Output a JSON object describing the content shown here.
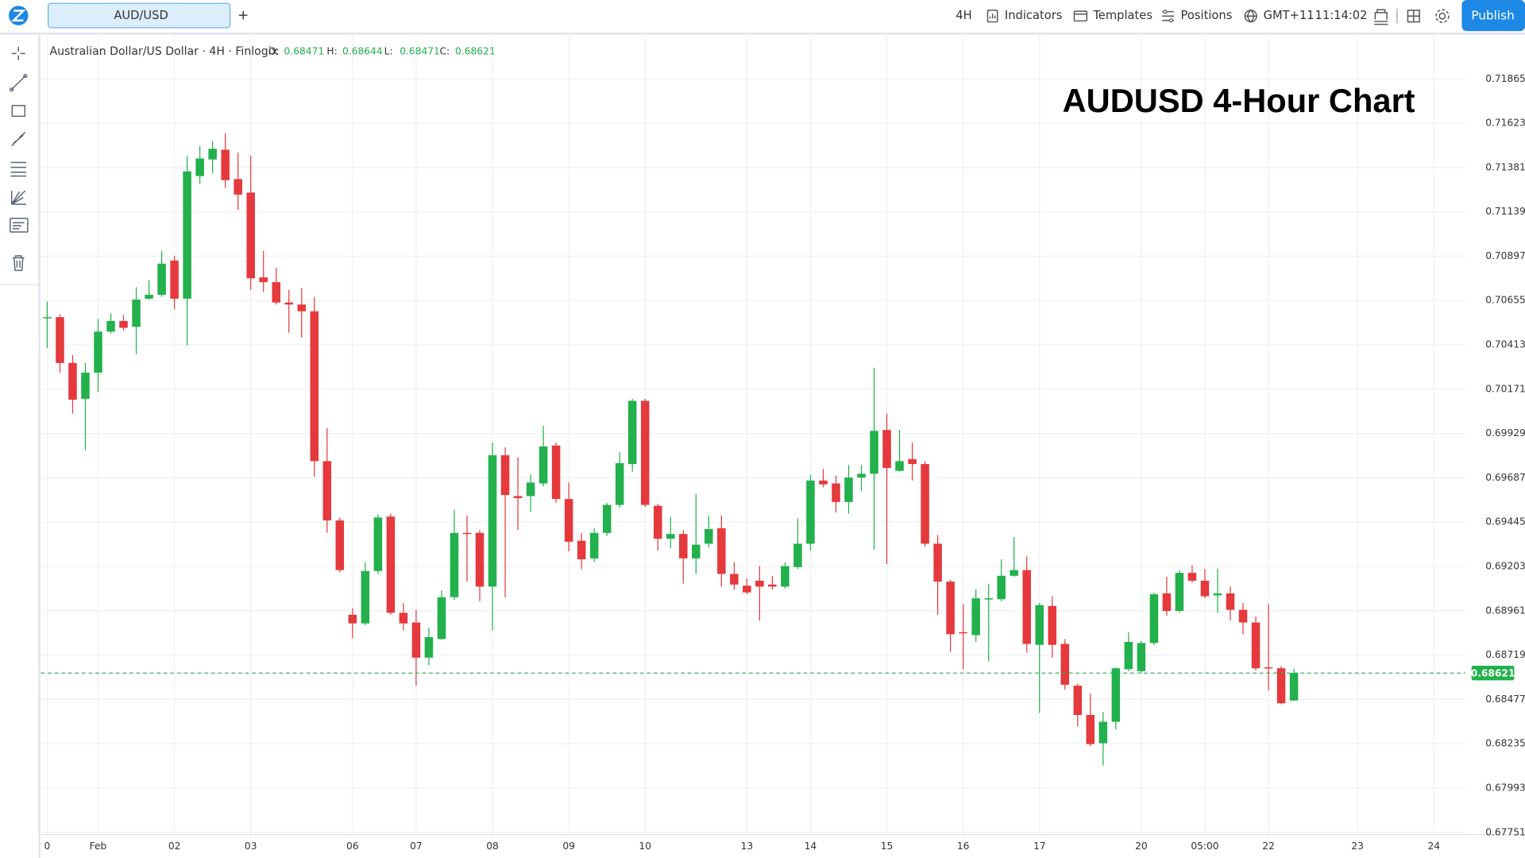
{
  "toolbar": {
    "symbol_tab": "AUD/USD",
    "add_tab": "+",
    "interval": "4H",
    "indicators": "Indicators",
    "templates": "Templates",
    "positions": "Positions",
    "timezone": "GMT+11",
    "clock": "11:14:02",
    "publish": "Publish"
  },
  "chart_data": {
    "type": "candlestick",
    "title": "AUDUSD 4-Hour Chart",
    "legend": {
      "symbol": "Australian Dollar/US Dollar · 4H · Finlogix",
      "labels": [
        "O:",
        "H:",
        "L:",
        "C:"
      ]
    },
    "categories": [
      "0",
      null,
      null,
      null,
      "Feb",
      null,
      null,
      null,
      null,
      null,
      "02",
      null,
      null,
      null,
      null,
      null,
      "03",
      null,
      null,
      null,
      null,
      null,
      null,
      null,
      "06",
      null,
      null,
      null,
      null,
      "07",
      null,
      null,
      null,
      null,
      null,
      "08",
      null,
      null,
      null,
      null,
      null,
      "09",
      null,
      null,
      null,
      null,
      null,
      "10",
      null,
      null,
      null,
      null,
      null,
      null,
      null,
      "13",
      null,
      null,
      null,
      null,
      "14",
      null,
      null,
      null,
      null,
      null,
      "15",
      null,
      null,
      null,
      null,
      null,
      "16",
      null,
      null,
      null,
      null,
      null,
      "17",
      null,
      null,
      null,
      null,
      null,
      null,
      null,
      "20",
      null,
      null,
      null,
      null,
      "05:00",
      null,
      null,
      null,
      null,
      "22",
      null,
      null,
      null,
      null,
      null,
      null,
      "23",
      null,
      null,
      null,
      null,
      null,
      "24",
      null,
      null
    ],
    "open": [
      0.70559,
      0.70564,
      0.70314,
      0.70118,
      0.70261,
      0.70485,
      0.70543,
      0.70511,
      0.70665,
      0.70686,
      0.70873,
      0.70665,
      0.71334,
      0.71425,
      0.71478,
      0.71318,
      0.71244,
      0.70781,
      0.70755,
      0.70644,
      0.70633,
      0.70596,
      0.69778,
      0.69454,
      0.68939,
      0.68892,
      0.69178,
      0.69475,
      0.6895,
      0.68897,
      0.68705,
      0.68807,
      0.69035,
      0.69386,
      0.69386,
      0.69093,
      0.6981,
      0.69587,
      0.69587,
      0.69656,
      0.69863,
      0.69571,
      0.69343,
      0.69247,
      0.69386,
      0.69539,
      0.69762,
      0.70107,
      0.69534,
      0.69354,
      0.6938,
      0.69247,
      0.69327,
      0.69412,
      0.69162,
      0.69098,
      0.69125,
      0.69104,
      0.69093,
      0.69199,
      0.69327,
      0.69672,
      0.69656,
      0.69555,
      0.69688,
      0.69709,
      0.69948,
      0.69725,
      0.69789,
      0.69762,
      0.69327,
      0.6912,
      0.68844,
      0.68828,
      0.69024,
      0.69024,
      0.69152,
      0.69183,
      0.68775,
      0.68987,
      0.6878,
      0.68552,
      0.68392,
      0.68238,
      0.68355,
      0.68642,
      0.68631,
      0.68785,
      0.69056,
      0.6896,
      0.69168,
      0.69125,
      0.69045,
      0.69056,
      0.68966,
      0.68897,
      0.68652,
      0.68647,
      0.68471,
      null,
      null,
      null,
      null,
      null,
      null,
      null,
      null,
      null,
      null,
      null,
      null,
      null
    ],
    "high": [
      0.70649,
      0.7058,
      0.70357,
      0.70314,
      0.70554,
      0.70585,
      0.70575,
      0.70728,
      0.70766,
      0.70926,
      0.70899,
      0.71446,
      0.71499,
      0.71525,
      0.71568,
      0.71462,
      0.71446,
      0.70926,
      0.70834,
      0.70713,
      0.70723,
      0.70675,
      0.69959,
      0.6947,
      0.68976,
      0.69226,
      0.69486,
      0.69491,
      0.69003,
      0.68966,
      0.6887,
      0.69072,
      0.69513,
      0.69481,
      0.69401,
      0.69879,
      0.69853,
      0.69799,
      0.69704,
      0.6997,
      0.69879,
      0.69661,
      0.69386,
      0.69412,
      0.6955,
      0.69826,
      0.70118,
      0.70118,
      0.69545,
      0.69475,
      0.69401,
      0.69598,
      0.69481,
      0.69481,
      0.69226,
      0.69136,
      0.69205,
      0.69152,
      0.69226,
      0.69465,
      0.69704,
      0.69736,
      0.69698,
      0.69757,
      0.69757,
      0.70288,
      0.70038,
      0.69948,
      0.69879,
      0.69778,
      0.69375,
      0.6913,
      0.68997,
      0.69077,
      0.69109,
      0.69242,
      0.69364,
      0.69258,
      0.69003,
      0.6904,
      0.68807,
      0.68562,
      0.68509,
      0.68408,
      0.68652,
      0.68844,
      0.68796,
      0.69061,
      0.69146,
      0.69183,
      0.6921,
      0.69189,
      0.69189,
      0.69093,
      0.69003,
      0.68929,
      0.68997,
      0.68658,
      0.68644,
      null,
      null,
      null,
      null,
      null,
      null,
      null,
      null,
      null,
      null,
      null,
      null,
      null
    ],
    "low": [
      0.70395,
      0.70261,
      0.70038,
      0.69837,
      0.70155,
      0.70474,
      0.7049,
      0.70363,
      0.7066,
      0.70675,
      0.70607,
      0.7041,
      0.71291,
      0.7135,
      0.7127,
      0.71148,
      0.70713,
      0.70702,
      0.70633,
      0.70479,
      0.70453,
      0.69693,
      0.69386,
      0.69172,
      0.68812,
      0.68881,
      0.69162,
      0.68939,
      0.68854,
      0.68552,
      0.68663,
      0.68801,
      0.69019,
      0.6912,
      0.69013,
      0.68854,
      0.69035,
      0.69401,
      0.69502,
      0.6964,
      0.6955,
      0.69285,
      0.69189,
      0.69226,
      0.6937,
      0.69523,
      0.6972,
      0.69529,
      0.6929,
      0.69301,
      0.69109,
      0.69162,
      0.69306,
      0.69093,
      0.69077,
      0.69051,
      0.68907,
      0.69077,
      0.69082,
      0.69189,
      0.6929,
      0.69635,
      0.69497,
      0.69491,
      0.69614,
      0.69295,
      0.69215,
      0.6972,
      0.69672,
      0.69311,
      0.68939,
      0.68737,
      0.68642,
      0.68791,
      0.68684,
      0.69013,
      0.69146,
      0.68732,
      0.68403,
      0.68705,
      0.6853,
      0.68329,
      0.68222,
      0.68116,
      0.68313,
      0.68631,
      0.68621,
      0.68775,
      0.68934,
      0.6895,
      0.69114,
      0.69029,
      0.6895,
      0.68907,
      0.68833,
      0.68636,
      0.68525,
      0.68451,
      0.68471,
      null,
      null,
      null,
      null,
      null,
      null,
      null,
      null,
      null,
      null,
      null,
      null,
      null
    ],
    "close": [
      0.70564,
      0.70314,
      0.70113,
      0.70261,
      0.70485,
      0.70543,
      0.70506,
      0.7066,
      0.70686,
      0.70856,
      0.70665,
      0.7136,
      0.7143,
      0.71483,
      0.71312,
      0.71233,
      0.70776,
      0.70755,
      0.70644,
      0.70633,
      0.70596,
      0.69778,
      0.69454,
      0.69183,
      0.68892,
      0.69178,
      0.6947,
      0.6895,
      0.68892,
      0.68705,
      0.68817,
      0.69035,
      0.69386,
      0.6938,
      0.69093,
      0.6981,
      0.69593,
      0.69576,
      0.69661,
      0.69858,
      0.69571,
      0.69338,
      0.69242,
      0.69386,
      0.69539,
      0.69767,
      0.70107,
      0.69539,
      0.69354,
      0.6938,
      0.69247,
      0.69322,
      0.69407,
      0.69162,
      0.69104,
      0.69061,
      0.69093,
      0.69093,
      0.69205,
      0.69327,
      0.69672,
      0.69651,
      0.69555,
      0.69688,
      0.69709,
      0.69943,
      0.69741,
      0.69778,
      0.69762,
      0.69327,
      0.6912,
      0.68833,
      0.68838,
      0.69029,
      0.69029,
      0.69152,
      0.69183,
      0.6878,
      0.68992,
      0.68775,
      0.68557,
      0.68392,
      0.68233,
      0.68355,
      0.68647,
      0.68791,
      0.68785,
      0.69051,
      0.6896,
      0.69168,
      0.69125,
      0.6904,
      0.69056,
      0.68966,
      0.68897,
      0.68647,
      0.68647,
      0.68456,
      0.68621,
      null,
      null,
      null,
      null,
      null,
      null,
      null,
      null,
      null,
      null,
      null,
      null,
      null
    ],
    "up_color": "#22b14c",
    "down_color": "#e5393d",
    "ylim": [
      0.67728,
      0.72099
    ],
    "yticks": [
      0.71865,
      0.71623,
      0.71381,
      0.71139,
      0.70897,
      0.70655,
      0.70413,
      0.70171,
      0.69929,
      0.69687,
      0.69445,
      0.69203,
      0.68961,
      0.68719,
      0.68477,
      0.68235,
      0.67993,
      0.67751
    ],
    "grid": true
  }
}
